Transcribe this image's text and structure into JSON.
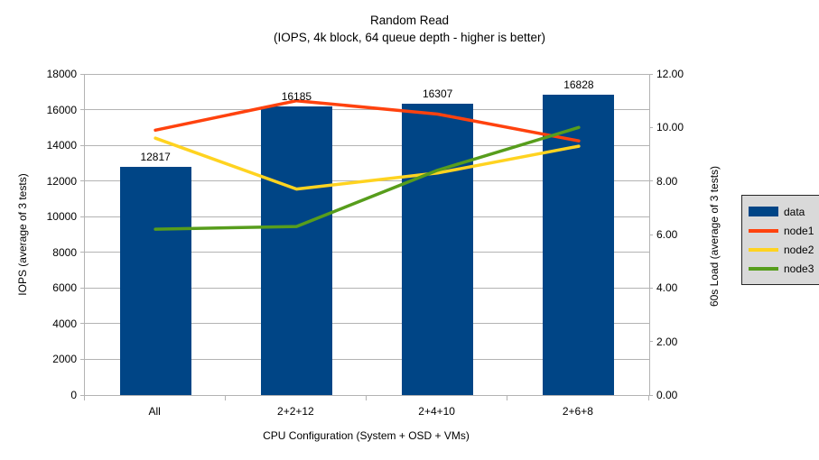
{
  "chart_data": {
    "type": "bar",
    "combo": "bars with line overlay (dual axis)",
    "title": "Random Read",
    "subtitle": "(IOPS, 4k block, 64 queue depth - higher is better)",
    "xlabel": "CPU Configuration (System + OSD + VMs)",
    "ylabel_left": "IOPS (average of 3 tests)",
    "ylabel_right": "60s Load (average of 3 tests)",
    "categories": [
      "All",
      "2+2+12",
      "2+4+10",
      "2+6+8"
    ],
    "bar_series": {
      "name": "data",
      "axis": "left",
      "values": [
        12817,
        16185,
        16307,
        16828
      ],
      "labels": [
        "12817",
        "16185",
        "16307",
        "16828"
      ],
      "color": "#004586"
    },
    "line_series": [
      {
        "name": "node1",
        "axis": "right",
        "values": [
          9.9,
          11.0,
          10.5,
          9.5
        ],
        "color": "#ff420e"
      },
      {
        "name": "node2",
        "axis": "right",
        "values": [
          9.6,
          7.7,
          8.3,
          9.3
        ],
        "color": "#ffd320"
      },
      {
        "name": "node3",
        "axis": "right",
        "values": [
          6.2,
          6.3,
          8.4,
          10.0
        ],
        "color": "#579d1c"
      }
    ],
    "ylim_left": [
      0,
      18000
    ],
    "ytick_step_left": 2000,
    "ylim_right": [
      0,
      12
    ],
    "ytick_step_right": 2,
    "ytick_format_right": "2-decimals",
    "grid": true,
    "legend_position": "right"
  },
  "legend": {
    "items": [
      {
        "label": "data",
        "swatch": "bar",
        "color": "#004586"
      },
      {
        "label": "node1",
        "swatch": "line",
        "color": "#ff420e"
      },
      {
        "label": "node2",
        "swatch": "line",
        "color": "#ffd320"
      },
      {
        "label": "node3",
        "swatch": "line",
        "color": "#579d1c"
      }
    ]
  },
  "colors": {
    "background": "#ffffff",
    "grid": "#b3b3b3",
    "axis": "#b3b3b3",
    "text": "#000000",
    "legend_bg": "#d9d9d9",
    "legend_border": "#262626"
  }
}
